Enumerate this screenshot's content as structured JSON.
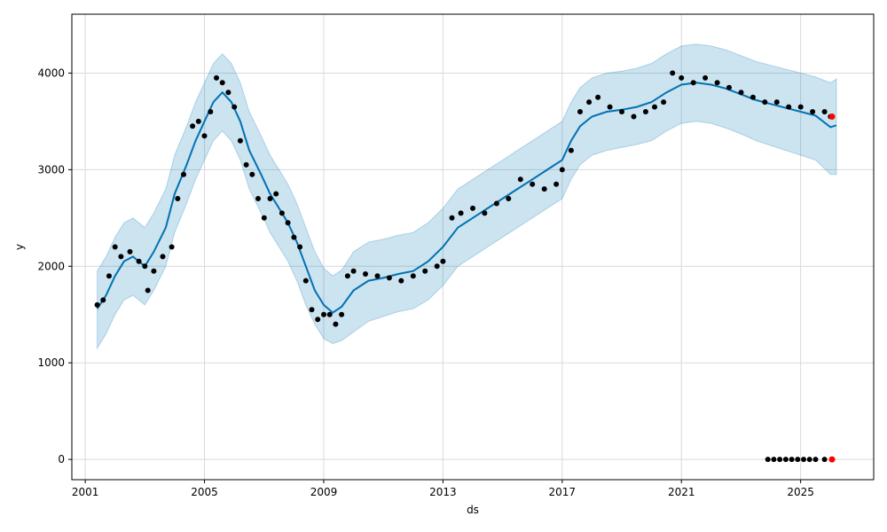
{
  "chart_data": {
    "type": "line",
    "title": "",
    "xlabel": "ds",
    "ylabel": "y",
    "xlim": [
      2000.55,
      2027.45
    ],
    "ylim": [
      -210,
      4610
    ],
    "grid": true,
    "x_ticks": [
      2001,
      2005,
      2009,
      2013,
      2017,
      2021,
      2025
    ],
    "x_tick_labels": [
      "2001",
      "2005",
      "2009",
      "2013",
      "2017",
      "2021",
      "2025"
    ],
    "y_ticks": [
      0,
      1000,
      2000,
      3000,
      4000
    ],
    "y_tick_labels": [
      "0",
      "1000",
      "2000",
      "3000",
      "4000"
    ],
    "colors": {
      "forecast_line": "#0072B2",
      "uncertainty_band": "#0072B2",
      "observed_points": "#000000",
      "highlight_points": "#ff0000",
      "grid": "#d9d9d9"
    },
    "series": [
      {
        "role": "forecast",
        "x": [
          2001.4,
          2001.7,
          2002.0,
          2002.3,
          2002.6,
          2003.0,
          2003.3,
          2003.7,
          2004.0,
          2004.4,
          2004.7,
          2005.0,
          2005.3,
          2005.6,
          2005.9,
          2006.2,
          2006.5,
          2006.9,
          2007.2,
          2007.5,
          2007.8,
          2008.1,
          2008.4,
          2008.7,
          2009.0,
          2009.3,
          2009.6,
          2010.0,
          2010.5,
          2011.0,
          2011.5,
          2012.0,
          2012.5,
          2013.0,
          2013.5,
          2014.0,
          2014.5,
          2015.0,
          2015.5,
          2016.0,
          2016.5,
          2017.0,
          2017.3,
          2017.6,
          2018.0,
          2018.5,
          2019.0,
          2019.5,
          2020.0,
          2020.5,
          2021.0,
          2021.5,
          2022.0,
          2022.5,
          2023.0,
          2023.5,
          2024.0,
          2024.5,
          2025.0,
          2025.5,
          2026.0,
          2026.2
        ],
        "y": [
          1560,
          1700,
          1900,
          2050,
          2100,
          2000,
          2150,
          2400,
          2750,
          3050,
          3300,
          3500,
          3700,
          3800,
          3700,
          3500,
          3200,
          2950,
          2750,
          2600,
          2450,
          2250,
          2000,
          1750,
          1600,
          1520,
          1580,
          1750,
          1850,
          1880,
          1920,
          1950,
          2050,
          2200,
          2400,
          2500,
          2600,
          2700,
          2800,
          2900,
          3000,
          3100,
          3300,
          3450,
          3550,
          3600,
          3620,
          3650,
          3700,
          3800,
          3880,
          3900,
          3880,
          3840,
          3780,
          3720,
          3680,
          3640,
          3600,
          3560,
          3440,
          3460
        ],
        "lower": [
          1150,
          1300,
          1500,
          1650,
          1700,
          1600,
          1750,
          2000,
          2350,
          2650,
          2900,
          3100,
          3300,
          3400,
          3300,
          3100,
          2800,
          2550,
          2350,
          2200,
          2050,
          1850,
          1600,
          1400,
          1250,
          1200,
          1230,
          1320,
          1430,
          1480,
          1530,
          1560,
          1650,
          1800,
          2000,
          2100,
          2200,
          2300,
          2400,
          2500,
          2600,
          2700,
          2900,
          3050,
          3150,
          3200,
          3230,
          3260,
          3300,
          3400,
          3480,
          3500,
          3480,
          3430,
          3370,
          3300,
          3250,
          3200,
          3150,
          3100,
          2950,
          2950
        ],
        "upper": [
          1950,
          2100,
          2300,
          2450,
          2500,
          2400,
          2550,
          2800,
          3150,
          3450,
          3700,
          3900,
          4100,
          4200,
          4100,
          3900,
          3600,
          3350,
          3150,
          3000,
          2850,
          2650,
          2400,
          2150,
          1980,
          1900,
          1960,
          2150,
          2250,
          2280,
          2320,
          2350,
          2450,
          2600,
          2800,
          2900,
          3000,
          3100,
          3200,
          3300,
          3400,
          3500,
          3700,
          3850,
          3950,
          4000,
          4020,
          4050,
          4100,
          4200,
          4280,
          4300,
          4280,
          4240,
          4180,
          4120,
          4080,
          4040,
          4000,
          3960,
          3900,
          3940
        ]
      },
      {
        "role": "observed",
        "x": [
          2001.4,
          2001.6,
          2001.8,
          2002.0,
          2002.2,
          2002.5,
          2002.8,
          2003.0,
          2003.1,
          2003.3,
          2003.6,
          2003.9,
          2004.1,
          2004.3,
          2004.6,
          2004.8,
          2005.0,
          2005.2,
          2005.4,
          2005.6,
          2005.8,
          2006.0,
          2006.2,
          2006.4,
          2006.6,
          2006.8,
          2007.0,
          2007.2,
          2007.4,
          2007.6,
          2007.8,
          2008.0,
          2008.2,
          2008.4,
          2008.6,
          2008.8,
          2009.0,
          2009.2,
          2009.4,
          2009.6,
          2009.8,
          2010.0,
          2010.4,
          2010.8,
          2011.2,
          2011.6,
          2012.0,
          2012.4,
          2012.8,
          2013.0,
          2013.3,
          2013.6,
          2014.0,
          2014.4,
          2014.8,
          2015.2,
          2015.6,
          2016.0,
          2016.4,
          2016.8,
          2017.0,
          2017.3,
          2017.6,
          2017.9,
          2018.2,
          2018.6,
          2019.0,
          2019.4,
          2019.8,
          2020.1,
          2020.4,
          2020.7,
          2021.0,
          2021.4,
          2021.8,
          2022.2,
          2022.6,
          2023.0,
          2023.4,
          2023.8,
          2024.2,
          2024.6,
          2025.0,
          2025.4,
          2025.8,
          2026.0,
          2023.9,
          2024.1,
          2024.3,
          2024.5,
          2024.7,
          2024.9,
          2025.1,
          2025.3,
          2025.5,
          2025.8
        ],
        "y": [
          1600,
          1650,
          1900,
          2200,
          2100,
          2150,
          2050,
          2000,
          1750,
          1950,
          2100,
          2200,
          2700,
          2950,
          3450,
          3500,
          3350,
          3600,
          3950,
          3900,
          3800,
          3650,
          3300,
          3050,
          2950,
          2700,
          2500,
          2700,
          2750,
          2550,
          2450,
          2300,
          2200,
          1850,
          1550,
          1450,
          1500,
          1500,
          1400,
          1500,
          1900,
          1950,
          1920,
          1900,
          1880,
          1850,
          1900,
          1950,
          2000,
          2050,
          2500,
          2550,
          2600,
          2550,
          2650,
          2700,
          2900,
          2850,
          2800,
          2850,
          3000,
          3200,
          3600,
          3700,
          3750,
          3650,
          3600,
          3550,
          3600,
          3650,
          3700,
          4000,
          3950,
          3900,
          3950,
          3900,
          3850,
          3800,
          3750,
          3700,
          3700,
          3650,
          3650,
          3600,
          3600,
          3550,
          0,
          0,
          0,
          0,
          0,
          0,
          0,
          0,
          0,
          0
        ]
      },
      {
        "role": "highlight",
        "x": [
          2026.05,
          2026.05
        ],
        "y": [
          3550,
          0
        ]
      }
    ]
  }
}
